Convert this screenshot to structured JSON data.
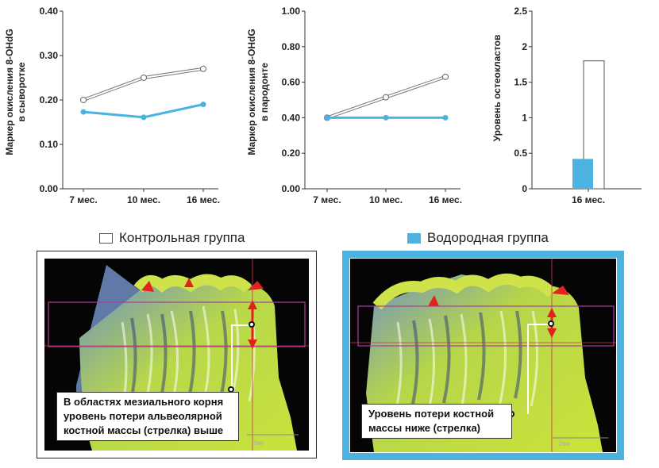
{
  "colors": {
    "hydrogen": "#4cb3e0",
    "control": "#ffffff",
    "control_line": "#777777",
    "axis": "#333333"
  },
  "chart_data": [
    {
      "type": "line",
      "categories": [
        "7 мес.",
        "10 мес.",
        "16 мес."
      ],
      "series": [
        {
          "name": "Контрольная группа",
          "values": [
            0.2,
            0.25,
            0.27
          ]
        },
        {
          "name": "Водородная группа",
          "values": [
            0.173,
            0.161,
            0.19
          ]
        }
      ],
      "ylabel": [
        "Маркер окисления 8-OHdG",
        "в сыворотке"
      ],
      "ylim": [
        0,
        0.4
      ],
      "yticks": [
        "0.00",
        "0.10",
        "0.20",
        "0.30",
        "0.40"
      ],
      "grid": false
    },
    {
      "type": "line",
      "categories": [
        "7 мес.",
        "10 мес.",
        "16 мес."
      ],
      "series": [
        {
          "name": "Контрольная группа",
          "values": [
            0.4,
            0.515,
            0.63
          ]
        },
        {
          "name": "Водородная группа",
          "values": [
            0.4,
            0.4,
            0.4
          ]
        }
      ],
      "ylabel": [
        "Маркер окисления 8-OHdG",
        "в пародонте"
      ],
      "ylim": [
        0,
        1.0
      ],
      "yticks": [
        "0.00",
        "0.20",
        "0.40",
        "0.60",
        "0.80",
        "1.00"
      ],
      "grid": false
    },
    {
      "type": "bar",
      "categories": [
        "16 мес."
      ],
      "series": [
        {
          "name": "Водородная группа",
          "values": [
            0.42
          ]
        },
        {
          "name": "Контрольная группа",
          "values": [
            1.8
          ]
        }
      ],
      "ylabel": [
        "Уровень остеокластов"
      ],
      "ylim": [
        0,
        2.5
      ],
      "yticks": [
        "0",
        "0.5",
        "1",
        "1.5",
        "2",
        "2.5"
      ],
      "grid": false
    }
  ],
  "legend": {
    "control_label": "Контрольная группа",
    "hydrogen_label": "Водородная группа"
  },
  "panels": {
    "control": {
      "callout": [
        "В областях мезиального корня",
        "уровень потери альвеолярной",
        "костной массы (стрелка) выше"
      ],
      "scale_label": "2mm"
    },
    "hydrogen": {
      "callout": [
        "Уровень потери костной",
        "массы ниже (стрелка)"
      ],
      "scale_label": "2mm"
    }
  }
}
